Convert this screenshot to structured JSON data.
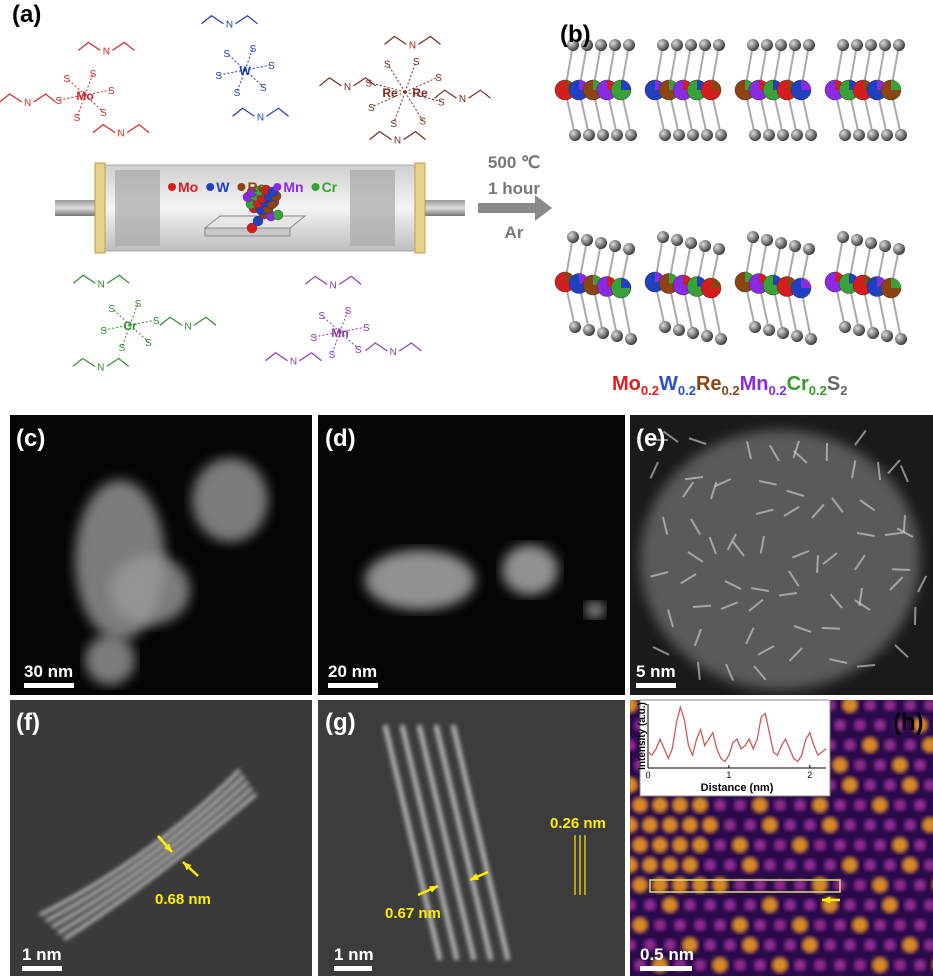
{
  "panel_labels": [
    "(a)",
    "(b)",
    "(c)",
    "(d)",
    "(e)",
    "(f)",
    "(g)",
    "(h)"
  ],
  "molecules": [
    {
      "metals": [
        "Mo"
      ],
      "color": "#d02828",
      "atoms": [
        "S",
        "S",
        "S",
        "S",
        "S",
        "S",
        "N",
        "N",
        "N"
      ]
    },
    {
      "metals": [
        "W"
      ],
      "color": "#1f3fb0",
      "atoms": [
        "S",
        "S",
        "S",
        "S",
        "S",
        "S",
        "N",
        "N"
      ]
    },
    {
      "metals": [
        "Re",
        "Re"
      ],
      "color": "#7a2a1a",
      "atoms": [
        "S",
        "S",
        "S",
        "S",
        "S",
        "S",
        "S",
        "S",
        "N",
        "N",
        "N",
        "N"
      ]
    },
    {
      "metals": [
        "Cr"
      ],
      "color": "#2e8b2e",
      "atoms": [
        "S",
        "S",
        "S",
        "S",
        "S",
        "S",
        "N",
        "N",
        "N"
      ]
    },
    {
      "metals": [
        "Mn"
      ],
      "color": "#8a3ab0",
      "atoms": [
        "S",
        "S",
        "S",
        "S",
        "S",
        "S",
        "N",
        "N",
        "N"
      ]
    }
  ],
  "legend": [
    {
      "name": "Mo",
      "color": "#d41e1e"
    },
    {
      "name": "W",
      "color": "#2040c0"
    },
    {
      "name": "Re",
      "color": "#8b4513"
    },
    {
      "name": "Mn",
      "color": "#8a2be2"
    },
    {
      "name": "Cr",
      "color": "#3aa03a"
    }
  ],
  "conditions": [
    "500 ℃",
    "1 hour",
    "Ar"
  ],
  "formula": [
    {
      "text": "Mo",
      "sub": "0.2",
      "color": "#e01e1e"
    },
    {
      "text": "W",
      "sub": "0.2",
      "color": "#2a4ed0"
    },
    {
      "text": "Re",
      "sub": "0.2",
      "color": "#8b4513"
    },
    {
      "text": "Mn",
      "sub": "0.2",
      "color": "#8a2be2"
    },
    {
      "text": "Cr",
      "sub": "0.2",
      "color": "#3a9a2a"
    },
    {
      "text": "S",
      "sub": "2",
      "color": "#666666"
    }
  ],
  "scale_bars": [
    "30 nm",
    "20 nm",
    "5 nm",
    "1 nm",
    "1 nm",
    "0.5 nm"
  ],
  "annotations": [
    "0.68 nm",
    "0.67 nm",
    "0.26 nm"
  ],
  "inset": {
    "type": "line",
    "xlabel": "Distance (nm)",
    "ylabel": "Intensity (a.u.)",
    "color": "#c85a5a",
    "xlim": [
      0,
      2.2
    ],
    "xticks": [
      0,
      1,
      2
    ],
    "ylim": [
      0,
      1
    ],
    "x": [
      0,
      0.05,
      0.1,
      0.15,
      0.2,
      0.25,
      0.3,
      0.35,
      0.4,
      0.45,
      0.5,
      0.55,
      0.6,
      0.65,
      0.7,
      0.75,
      0.8,
      0.85,
      0.9,
      0.95,
      1.0,
      1.05,
      1.1,
      1.15,
      1.2,
      1.25,
      1.3,
      1.35,
      1.4,
      1.45,
      1.5,
      1.55,
      1.6,
      1.65,
      1.7,
      1.75,
      1.8,
      1.85,
      1.9,
      1.95,
      2.0,
      2.05,
      2.1,
      2.15,
      2.2
    ],
    "values": [
      0.25,
      0.2,
      0.3,
      0.45,
      0.3,
      0.15,
      0.3,
      0.7,
      0.95,
      0.75,
      0.35,
      0.2,
      0.45,
      0.6,
      0.35,
      0.45,
      0.55,
      0.3,
      0.15,
      0.1,
      0.2,
      0.4,
      0.45,
      0.3,
      0.35,
      0.45,
      0.3,
      0.45,
      0.8,
      0.85,
      0.55,
      0.25,
      0.2,
      0.35,
      0.45,
      0.3,
      0.15,
      0.1,
      0.2,
      0.45,
      0.55,
      0.35,
      0.2,
      0.25,
      0.3
    ]
  }
}
